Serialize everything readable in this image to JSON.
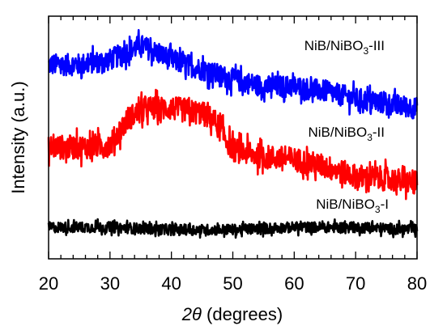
{
  "chart_data": {
    "type": "line",
    "xlabel": {
      "italic": "2θ",
      "rest": " (degrees)"
    },
    "ylabel": "Intensity (a.u.)",
    "xlim": [
      20,
      80
    ],
    "xticks": [
      "20",
      "30",
      "40",
      "50",
      "60",
      "70",
      "80"
    ],
    "grid": false,
    "series": [
      {
        "label_main": "NiB/NiBO",
        "label_sub": "3",
        "label_suffix": "-III",
        "color": "#0000ff",
        "profile": [
          [
            20,
            0.8
          ],
          [
            25,
            0.8
          ],
          [
            30,
            0.82
          ],
          [
            35,
            0.88
          ],
          [
            40,
            0.82
          ],
          [
            45,
            0.78
          ],
          [
            50,
            0.74
          ],
          [
            55,
            0.71
          ],
          [
            60,
            0.71
          ],
          [
            65,
            0.69
          ],
          [
            70,
            0.66
          ],
          [
            75,
            0.64
          ],
          [
            80,
            0.62
          ]
        ]
      },
      {
        "label_main": "NiB/NiBO",
        "label_sub": "3",
        "label_suffix": "-II",
        "color": "#ff0000",
        "profile": [
          [
            20,
            0.46
          ],
          [
            25,
            0.46
          ],
          [
            30,
            0.47
          ],
          [
            33,
            0.58
          ],
          [
            36,
            0.62
          ],
          [
            40,
            0.62
          ],
          [
            45,
            0.6
          ],
          [
            47,
            0.57
          ],
          [
            50,
            0.45
          ],
          [
            55,
            0.42
          ],
          [
            60,
            0.41
          ],
          [
            65,
            0.38
          ],
          [
            70,
            0.34
          ],
          [
            75,
            0.33
          ],
          [
            80,
            0.31
          ]
        ]
      },
      {
        "label_main": "NiB/NiBO",
        "label_sub": "3",
        "label_suffix": "-I",
        "color": "#000000",
        "profile": [
          [
            20,
            0.13
          ],
          [
            30,
            0.13
          ],
          [
            40,
            0.12
          ],
          [
            50,
            0.12
          ],
          [
            60,
            0.13
          ],
          [
            70,
            0.13
          ],
          [
            80,
            0.12
          ]
        ]
      }
    ]
  }
}
